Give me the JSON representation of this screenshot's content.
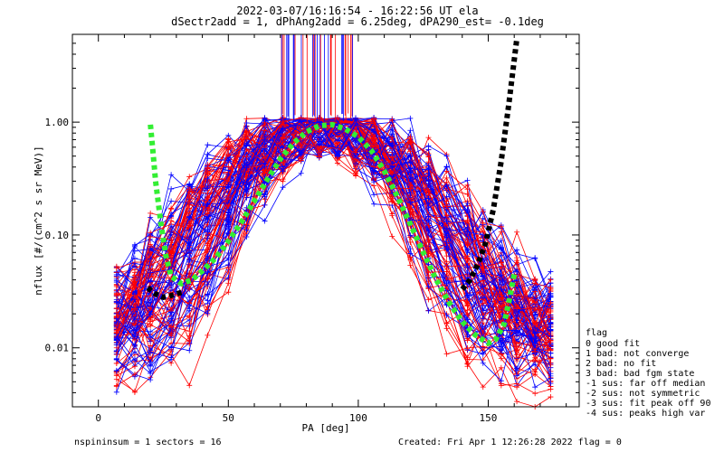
{
  "chart_data": {
    "type": "line",
    "title": "2022-03-07/16:16:54 - 16:22:56 UT ela",
    "subtitle": "dSectr2add = 1, dPhAng2add = 6.25deg, dPA290_est=  -0.1deg",
    "xlabel": "PA [deg]",
    "ylabel": "nflux [#/(cm^2 s sr MeV)]",
    "xlim": [
      -10,
      185
    ],
    "ylim": [
      0.003,
      6.0
    ],
    "yscale": "log",
    "x_ticks": [
      0,
      50,
      100,
      150
    ],
    "y_ticks": [
      {
        "value": 0.01,
        "label": "0.01"
      },
      {
        "value": 0.1,
        "label": "0.10"
      },
      {
        "value": 1.0,
        "label": "1.00"
      }
    ],
    "grid": false,
    "series": [
      {
        "color": "#000000",
        "style": "thick-dotted",
        "x": [
          19,
          22,
          25,
          28,
          32,
          140,
          143,
          146,
          149,
          152,
          155,
          158,
          161
        ],
        "y": [
          0.034,
          0.03,
          0.028,
          0.029,
          0.031,
          0.033,
          0.04,
          0.055,
          0.085,
          0.17,
          0.45,
          1.5,
          5.5
        ]
      },
      {
        "color": "#33ee33",
        "style": "thick-dotted",
        "x": [
          20,
          21,
          22,
          24,
          26,
          28,
          32,
          36,
          40,
          45,
          50,
          55,
          60,
          65,
          70,
          75,
          80,
          85,
          90,
          95,
          100,
          105,
          110,
          115,
          120,
          125,
          130,
          135,
          140,
          145,
          150,
          153,
          156,
          158,
          160
        ],
        "y": [
          0.95,
          0.55,
          0.3,
          0.13,
          0.065,
          0.043,
          0.037,
          0.04,
          0.048,
          0.062,
          0.088,
          0.13,
          0.2,
          0.31,
          0.47,
          0.65,
          0.82,
          0.93,
          0.95,
          0.87,
          0.74,
          0.56,
          0.37,
          0.22,
          0.125,
          0.07,
          0.04,
          0.025,
          0.017,
          0.013,
          0.011,
          0.012,
          0.016,
          0.026,
          0.045
        ]
      }
    ],
    "legend": {
      "position": "right",
      "title": "flag",
      "entries": [
        " 0 good fit",
        " 1 bad: not converge",
        " 2 bad: no fit",
        " 3 bad: bad fgm state",
        "-1 sus: far off median",
        "-2 sus: not symmetric",
        "-3 sus: fit peak off 90",
        "-4 sus: peaks high var"
      ]
    }
  },
  "footer": {
    "left": "nspininsum =  1  sectors = 16",
    "right": "Created: Fri Apr  1 12:26:28 2022   flag = 0"
  },
  "colors": {
    "red": "#ff0000",
    "blue": "#0000ff",
    "black": "#000000",
    "green": "#33ee33"
  }
}
